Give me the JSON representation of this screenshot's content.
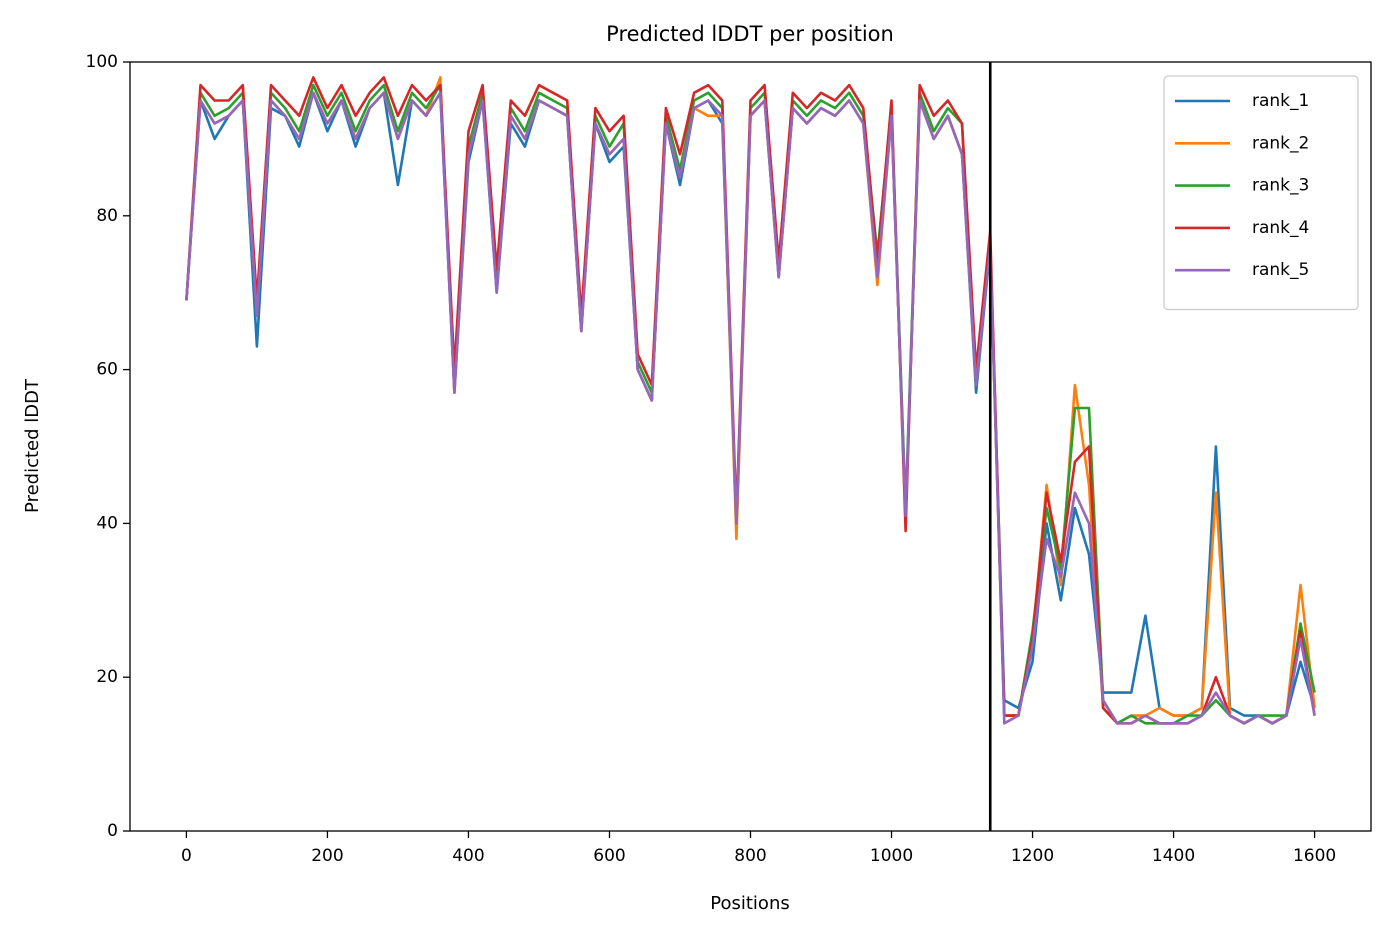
{
  "chart_data": {
    "type": "line",
    "title": "Predicted lDDT per position",
    "xlabel": "Positions",
    "ylabel": "Predicted lDDT",
    "x": [
      0,
      20,
      40,
      60,
      80,
      100,
      120,
      140,
      160,
      180,
      200,
      220,
      240,
      260,
      280,
      300,
      320,
      340,
      360,
      380,
      400,
      420,
      440,
      460,
      480,
      500,
      520,
      540,
      560,
      580,
      600,
      620,
      640,
      660,
      680,
      700,
      720,
      740,
      760,
      780,
      800,
      820,
      840,
      860,
      880,
      900,
      920,
      940,
      960,
      980,
      1000,
      1020,
      1040,
      1060,
      1080,
      1100,
      1120,
      1140,
      1160,
      1180,
      1200,
      1220,
      1240,
      1260,
      1280,
      1300,
      1320,
      1340,
      1360,
      1380,
      1400,
      1420,
      1440,
      1460,
      1480,
      1500,
      1520,
      1540,
      1560,
      1580,
      1600
    ],
    "series": [
      {
        "name": "rank_1",
        "color": "#1f77b4",
        "values": [
          69,
          95,
          90,
          93,
          95,
          63,
          94,
          93,
          89,
          96,
          91,
          95,
          89,
          94,
          96,
          84,
          95,
          93,
          96,
          57,
          87,
          95,
          70,
          92,
          89,
          95,
          94,
          93,
          65,
          92,
          87,
          89,
          60,
          56,
          92,
          84,
          94,
          95,
          92,
          40,
          93,
          95,
          72,
          94,
          92,
          94,
          93,
          95,
          92,
          72,
          93,
          41,
          95,
          90,
          93,
          88,
          57,
          76,
          17,
          16,
          22,
          40,
          30,
          42,
          36,
          18,
          18,
          18,
          28,
          16,
          15,
          15,
          16,
          50,
          16,
          15,
          15,
          14,
          15,
          22,
          16
        ]
      },
      {
        "name": "rank_2",
        "color": "#ff7f0e",
        "values": [
          69,
          95,
          92,
          93,
          95,
          67,
          95,
          93,
          90,
          96,
          92,
          95,
          90,
          94,
          96,
          90,
          95,
          93,
          98,
          57,
          88,
          95,
          72,
          93,
          90,
          95,
          94,
          93,
          65,
          92,
          88,
          90,
          60,
          56,
          92,
          85,
          94,
          93,
          93,
          38,
          93,
          95,
          72,
          94,
          92,
          94,
          93,
          95,
          92,
          71,
          93,
          41,
          95,
          90,
          93,
          88,
          58,
          76,
          15,
          15,
          25,
          45,
          32,
          58,
          45,
          16,
          14,
          15,
          15,
          16,
          15,
          15,
          16,
          44,
          15,
          14,
          15,
          14,
          15,
          32,
          16
        ]
      },
      {
        "name": "rank_3",
        "color": "#2ca02c",
        "values": [
          69,
          96,
          93,
          94,
          96,
          68,
          96,
          94,
          91,
          97,
          93,
          96,
          91,
          95,
          97,
          91,
          96,
          94,
          97,
          58,
          89,
          96,
          71,
          94,
          91,
          96,
          95,
          94,
          66,
          93,
          89,
          92,
          61,
          57,
          93,
          86,
          95,
          96,
          94,
          40,
          94,
          96,
          73,
          95,
          93,
          95,
          94,
          96,
          93,
          75,
          94,
          42,
          96,
          91,
          94,
          92,
          58,
          76,
          15,
          15,
          26,
          42,
          34,
          55,
          55,
          17,
          14,
          15,
          14,
          14,
          14,
          15,
          15,
          17,
          15,
          14,
          15,
          15,
          15,
          27,
          18
        ]
      },
      {
        "name": "rank_4",
        "color": "#d62728",
        "values": [
          69,
          97,
          95,
          95,
          97,
          69,
          97,
          95,
          93,
          98,
          94,
          97,
          93,
          96,
          98,
          93,
          97,
          95,
          97,
          60,
          91,
          97,
          73,
          95,
          93,
          97,
          96,
          95,
          67,
          94,
          91,
          93,
          62,
          58,
          94,
          88,
          96,
          97,
          95,
          41,
          95,
          97,
          74,
          96,
          94,
          96,
          95,
          97,
          94,
          74,
          95,
          39,
          97,
          93,
          95,
          92,
          60,
          78,
          15,
          15,
          25,
          44,
          35,
          48,
          50,
          16,
          14,
          14,
          15,
          14,
          14,
          14,
          15,
          20,
          15,
          14,
          15,
          14,
          15,
          26,
          15
        ]
      },
      {
        "name": "rank_5",
        "color": "#9467bd",
        "values": [
          69,
          95,
          92,
          93,
          95,
          67,
          95,
          93,
          90,
          96,
          92,
          95,
          90,
          94,
          96,
          90,
          95,
          93,
          96,
          57,
          88,
          95,
          70,
          93,
          90,
          95,
          94,
          93,
          65,
          92,
          88,
          90,
          60,
          56,
          92,
          85,
          94,
          95,
          93,
          40,
          93,
          95,
          72,
          94,
          92,
          94,
          93,
          95,
          92,
          72,
          93,
          41,
          95,
          90,
          93,
          88,
          58,
          76,
          14,
          15,
          24,
          38,
          33,
          44,
          40,
          17,
          14,
          14,
          15,
          14,
          14,
          14,
          15,
          18,
          15,
          14,
          15,
          14,
          15,
          25,
          15
        ]
      }
    ],
    "vlines": [
      1140
    ],
    "xlim": [
      -80,
      1680
    ],
    "xticks": [
      0,
      200,
      400,
      600,
      800,
      1000,
      1200,
      1400,
      1600
    ],
    "ylim": [
      0,
      100
    ],
    "yticks": [
      0,
      20,
      40,
      60,
      80,
      100
    ],
    "legend": "upper right"
  }
}
